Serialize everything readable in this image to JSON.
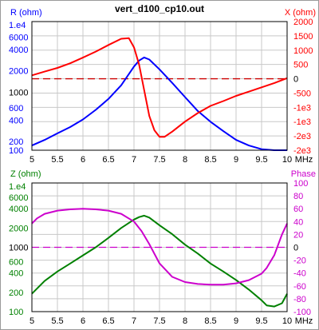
{
  "title": "vert_d100_cp10.out",
  "chart_data": [
    {
      "type": "line",
      "x_unit": "MHz",
      "x_ticks": [
        "5",
        "5.5",
        "6",
        "6.5",
        "7",
        "7.5",
        "8",
        "8.5",
        "9",
        "9.5",
        "10"
      ],
      "xlim": [
        5,
        10
      ],
      "left_axis": {
        "label": "R (ohm)",
        "color": "#0000ff",
        "scale": "log",
        "ylim": [
          150,
          10000
        ],
        "ticks": [
          "1.e4",
          "6000",
          "4000",
          "2000",
          "1000",
          "600",
          "400",
          "200",
          "100"
        ],
        "tick_values": [
          10000,
          6000,
          4000,
          2000,
          1000,
          600,
          400,
          200,
          100
        ],
        "tick_colors": [
          "#0000ff",
          "#0000ff",
          "#0000ff",
          "#0000ff",
          "#000000",
          "#0000ff",
          "#0000ff",
          "#0000ff",
          "#0000ff"
        ]
      },
      "right_axis": {
        "label": "X (ohm)",
        "color": "#ff0000",
        "scale": "linear",
        "ylim": [
          -2500,
          2000
        ],
        "ticks": [
          "2000",
          "1500",
          "1000",
          "500",
          "0",
          "-500",
          "-1e3",
          "-1e3",
          "-2e3",
          "-2e3"
        ],
        "tick_values": [
          2000,
          1500,
          1000,
          500,
          0,
          -500,
          -1000,
          -1500,
          -2000,
          -2500
        ],
        "tick_colors": [
          "#ff0000",
          "#ff0000",
          "#ff0000",
          "#ff0000",
          "#000000",
          "#ff0000",
          "#ff0000",
          "#ff0000",
          "#ff0000",
          "#ff0000"
        ]
      },
      "reference_line": {
        "value": 0,
        "axis": "right",
        "color": "#cc0000",
        "style": "dashed"
      },
      "series": [
        {
          "name": "R (ohm)",
          "axis": "left",
          "color": "#0000ff",
          "x": [
            5,
            5.25,
            5.5,
            5.75,
            6,
            6.25,
            6.5,
            6.75,
            7,
            7.1,
            7.2,
            7.3,
            7.5,
            7.75,
            8,
            8.25,
            8.5,
            8.75,
            9,
            9.25,
            9.5,
            9.75,
            10
          ],
          "y": [
            175,
            210,
            260,
            320,
            410,
            560,
            800,
            1250,
            2300,
            2800,
            3100,
            2900,
            2100,
            1350,
            850,
            540,
            380,
            280,
            210,
            175,
            155,
            150,
            150
          ]
        },
        {
          "name": "X (ohm)",
          "axis": "right",
          "color": "#ff0000",
          "x": [
            5,
            5.25,
            5.5,
            5.75,
            6,
            6.25,
            6.5,
            6.75,
            6.9,
            7,
            7.1,
            7.2,
            7.3,
            7.4,
            7.5,
            7.6,
            7.75,
            8,
            8.25,
            8.5,
            8.75,
            9,
            9.25,
            9.5,
            9.75,
            10
          ],
          "y": [
            120,
            250,
            380,
            540,
            740,
            950,
            1180,
            1400,
            1420,
            1100,
            500,
            -400,
            -1300,
            -1800,
            -2030,
            -2030,
            -1850,
            -1500,
            -1200,
            -950,
            -780,
            -600,
            -450,
            -300,
            -150,
            20
          ]
        }
      ]
    },
    {
      "type": "line",
      "x_unit": "MHz",
      "x_ticks": [
        "5",
        "5.5",
        "6",
        "6.5",
        "7",
        "7.5",
        "8",
        "8.5",
        "9",
        "9.5",
        "10"
      ],
      "xlim": [
        5,
        10
      ],
      "left_axis": {
        "label": "Z (ohm)",
        "color": "#008000",
        "scale": "log",
        "ylim": [
          100,
          10000
        ],
        "ticks": [
          "1.e4",
          "6000",
          "4000",
          "2000",
          "1000",
          "600",
          "400",
          "200",
          "100"
        ],
        "tick_values": [
          10000,
          6000,
          4000,
          2000,
          1000,
          600,
          400,
          200,
          100
        ],
        "tick_colors": [
          "#008000",
          "#008000",
          "#008000",
          "#008000",
          "#000000",
          "#008000",
          "#008000",
          "#008000",
          "#008000"
        ]
      },
      "right_axis": {
        "label": "Phase",
        "color": "#cc00cc",
        "scale": "linear",
        "ylim": [
          -100,
          100
        ],
        "ticks": [
          "100",
          "80",
          "60",
          "40",
          "20",
          "0",
          "-20",
          "-40",
          "-60",
          "-80",
          "-100"
        ],
        "tick_values": [
          100,
          80,
          60,
          40,
          20,
          0,
          -20,
          -40,
          -60,
          -80,
          -100
        ],
        "tick_colors": [
          "#cc00cc",
          "#cc00cc",
          "#cc00cc",
          "#cc00cc",
          "#cc00cc",
          "#000000",
          "#cc00cc",
          "#cc00cc",
          "#cc00cc",
          "#cc00cc",
          "#cc00cc"
        ]
      },
      "reference_line": {
        "value": 0,
        "axis": "right",
        "color": "#cc00cc",
        "style": "dashed"
      },
      "series": [
        {
          "name": "Z (ohm)",
          "axis": "left",
          "color": "#008000",
          "x": [
            5,
            5.25,
            5.5,
            5.75,
            6,
            6.25,
            6.5,
            6.75,
            7,
            7.1,
            7.2,
            7.3,
            7.5,
            7.75,
            8,
            8.25,
            8.5,
            8.75,
            9,
            9.25,
            9.5,
            9.6,
            9.75,
            9.9,
            10
          ],
          "y": [
            190,
            300,
            420,
            560,
            750,
            1000,
            1400,
            2000,
            2700,
            2950,
            3100,
            2900,
            2200,
            1600,
            1100,
            800,
            560,
            420,
            310,
            220,
            150,
            125,
            120,
            135,
            190
          ]
        },
        {
          "name": "Phase",
          "axis": "right",
          "color": "#cc00cc",
          "x": [
            5,
            5.1,
            5.25,
            5.5,
            5.75,
            6,
            6.25,
            6.5,
            6.75,
            7,
            7.15,
            7.3,
            7.5,
            7.75,
            8,
            8.25,
            8.5,
            8.75,
            9,
            9.25,
            9.5,
            9.6,
            9.75,
            9.9,
            10
          ],
          "y": [
            37,
            45,
            52,
            57,
            59,
            60,
            59,
            57,
            52,
            40,
            25,
            5,
            -25,
            -46,
            -54,
            -57,
            -58,
            -58,
            -56,
            -51,
            -41,
            -32,
            -12,
            20,
            37
          ]
        }
      ]
    }
  ]
}
